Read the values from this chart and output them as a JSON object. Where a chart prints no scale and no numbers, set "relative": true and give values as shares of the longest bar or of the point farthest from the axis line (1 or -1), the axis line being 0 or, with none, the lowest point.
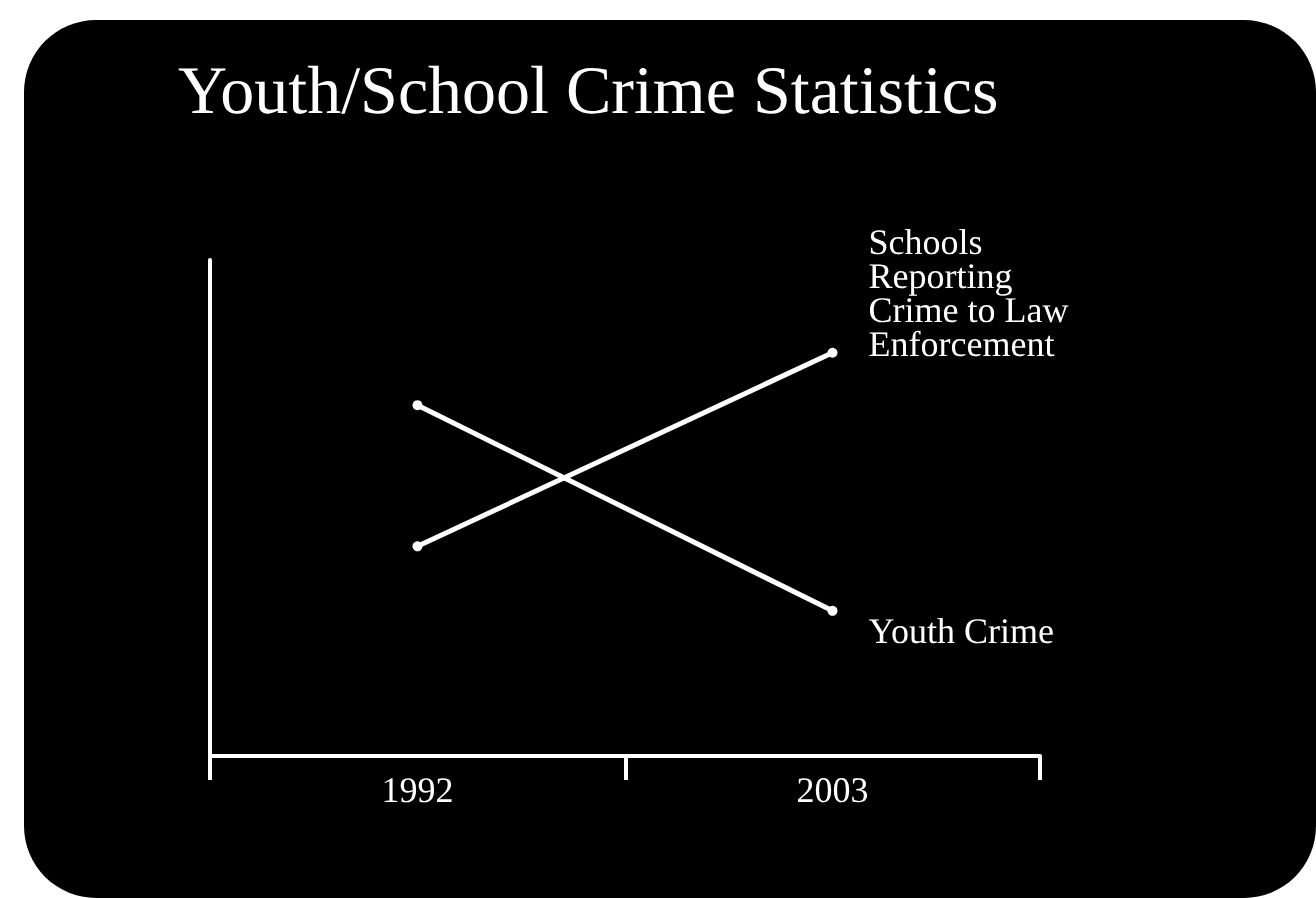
{
  "chart_data": {
    "type": "line",
    "title": "Youth/School Crime Statistics",
    "relative": true,
    "categories": [
      "1992",
      "2003"
    ],
    "series": [
      {
        "name": "Schools Reporting Crime to Law Enforcement",
        "color": "#ffffff",
        "values": [
          0.52,
          1
        ]
      },
      {
        "name": "Youth Crime",
        "color": "#ffffff",
        "values": [
          0.87,
          0.36
        ]
      }
    ],
    "marker": "circle",
    "grid": false,
    "legend": false
  }
}
